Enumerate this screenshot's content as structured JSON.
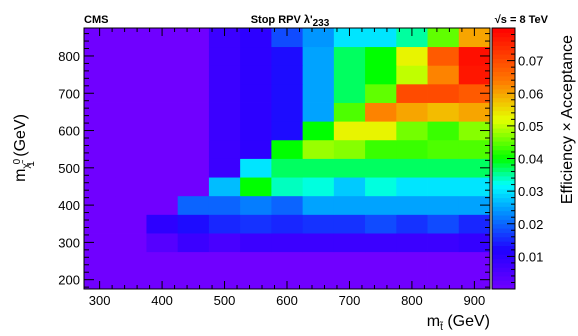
{
  "header": {
    "left": "CMS",
    "center": "Stop RPV λ'",
    "center_sub": "233",
    "right": "√s = 8 TeV"
  },
  "chart_data": {
    "type": "heatmap",
    "xlabel": "m",
    "xlabel_sub": "t̃",
    "xlabel_unit": " (GeV)",
    "ylabel": "m",
    "ylabel_sub": "χ̃",
    "ylabel_sub2": "1",
    "ylabel_sup": "0",
    "ylabel_unit": " (GeV)",
    "zlabel": "Efficiency × Acceptance",
    "xlim": [
      275,
      925
    ],
    "ylim": [
      175,
      875
    ],
    "zlim": [
      0,
      0.08
    ],
    "xbin_width": 50,
    "ybin_width": 50,
    "xticks": [
      300,
      400,
      500,
      600,
      700,
      800,
      900
    ],
    "xtick_labels": [
      "300",
      "400",
      "500",
      "600",
      "700",
      "800",
      "900"
    ],
    "yticks": [
      200,
      300,
      400,
      500,
      600,
      700,
      800
    ],
    "ytick_labels": [
      "200",
      "300",
      "400",
      "500",
      "600",
      "700",
      "800"
    ],
    "zticks": [
      0.01,
      0.02,
      0.03,
      0.04,
      0.05,
      0.06,
      0.07
    ],
    "ztick_labels": [
      "0.01",
      "0.02",
      "0.03",
      "0.04",
      "0.05",
      "0.06",
      "0.07"
    ],
    "x_centers": [
      300,
      350,
      400,
      450,
      500,
      550,
      600,
      650,
      700,
      750,
      800,
      850,
      900
    ],
    "y_centers": [
      200,
      250,
      300,
      350,
      400,
      450,
      500,
      550,
      600,
      650,
      700,
      750,
      800,
      850
    ],
    "z": [
      [
        0,
        0,
        0,
        0,
        0,
        0,
        0,
        0,
        0,
        0,
        0,
        0,
        0
      ],
      [
        0,
        0,
        0,
        0,
        0,
        0,
        0,
        0,
        0,
        0,
        0,
        0,
        0
      ],
      [
        0,
        0,
        0.004,
        0.008,
        0.006,
        0.008,
        0.008,
        0.008,
        0.008,
        0.008,
        0.008,
        0.008,
        0.009
      ],
      [
        0,
        0,
        0.01,
        0.013,
        0.015,
        0.016,
        0.015,
        0.016,
        0.016,
        0.018,
        0.016,
        0.018,
        0.015
      ],
      [
        0,
        0,
        0,
        0.02,
        0.02,
        0.022,
        0.02,
        0.025,
        0.025,
        0.025,
        0.025,
        0.025,
        0.025
      ],
      [
        0,
        0,
        0,
        0,
        0.027,
        0.04,
        0.034,
        0.033,
        0.028,
        0.033,
        0.03,
        0.03,
        0.03
      ],
      [
        0,
        0,
        0,
        0,
        0.008,
        0.03,
        0.037,
        0.037,
        0.037,
        0.037,
        0.037,
        0.037,
        0.037
      ],
      [
        0,
        0,
        0,
        0,
        0.008,
        0.01,
        0.04,
        0.048,
        0.047,
        0.043,
        0.043,
        0.044,
        0.044
      ],
      [
        0,
        0,
        0,
        0,
        0.008,
        0.01,
        0.013,
        0.04,
        0.053,
        0.053,
        0.046,
        0.043,
        0.047
      ],
      [
        0,
        0,
        0,
        0,
        0.008,
        0.01,
        0.013,
        0.025,
        0.044,
        0.063,
        0.06,
        0.058,
        0.06
      ],
      [
        0,
        0,
        0,
        0,
        0.008,
        0.01,
        0.013,
        0.025,
        0.037,
        0.045,
        0.07,
        0.07,
        0.068
      ],
      [
        0,
        0,
        0,
        0,
        0.008,
        0.01,
        0.013,
        0.025,
        0.037,
        0.04,
        0.05,
        0.063,
        0.077
      ],
      [
        0,
        0,
        0,
        0,
        0.008,
        0.01,
        0.013,
        0.025,
        0.037,
        0.04,
        0.053,
        0.068,
        0.078
      ],
      [
        0,
        0,
        0,
        0,
        0.008,
        0.01,
        0.018,
        0.024,
        0.03,
        0.03,
        0.035,
        0.045,
        0.06
      ]
    ]
  }
}
